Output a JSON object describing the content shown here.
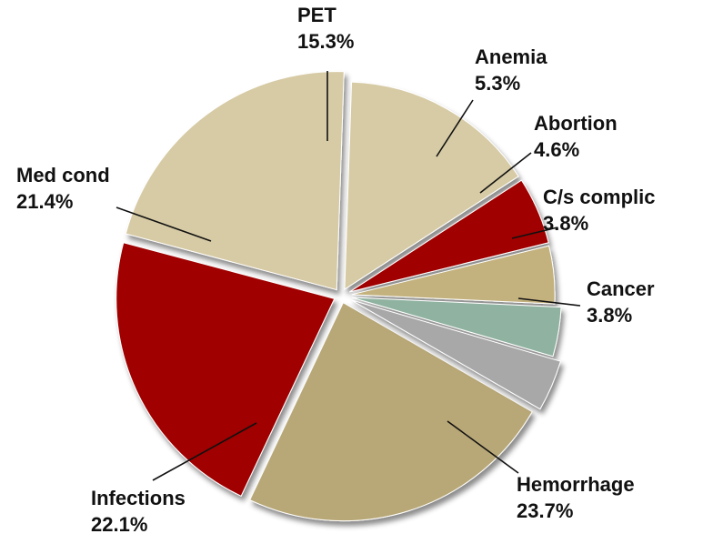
{
  "chart_data": {
    "type": "pie",
    "title": "",
    "slices": [
      {
        "name": "Hemorrhage",
        "value": 23.7,
        "value_label": "23.7%",
        "color": "#b9a877"
      },
      {
        "name": "Infections",
        "value": 22.1,
        "value_label": "22.1%",
        "color": "#a00000"
      },
      {
        "name": "Med cond",
        "value": 21.4,
        "value_label": "21.4%",
        "color": "#d7cba5"
      },
      {
        "name": "PET",
        "value": 15.3,
        "value_label": "15.3%",
        "color": "#d7cba5"
      },
      {
        "name": "Anemia",
        "value": 5.3,
        "value_label": "5.3%",
        "color": "#a00000"
      },
      {
        "name": "Abortion",
        "value": 4.6,
        "value_label": "4.6%",
        "color": "#c4b27e"
      },
      {
        "name": "C/s complic",
        "value": 3.8,
        "value_label": "3.8%",
        "color": "#8fb3a0"
      },
      {
        "name": "Cancer",
        "value": 3.8,
        "value_label": "3.8%",
        "color": "#a8a8a8"
      }
    ],
    "exploded": true,
    "legend": "none",
    "labels": "outside with leader lines"
  }
}
